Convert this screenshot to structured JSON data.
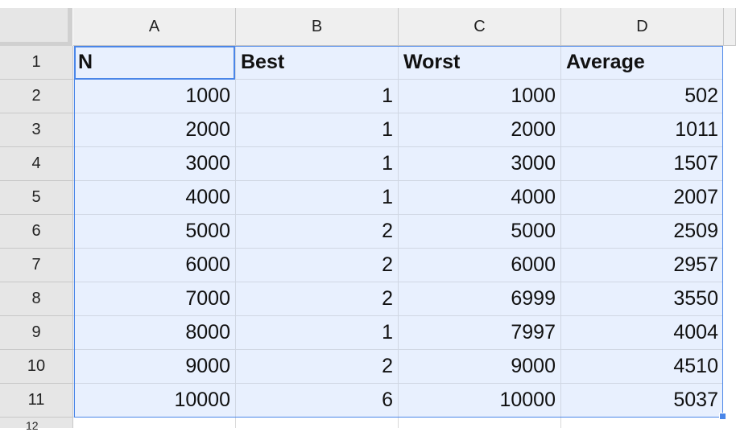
{
  "columns": [
    "A",
    "B",
    "C",
    "D"
  ],
  "header_row": {
    "row_label": "1",
    "cells": [
      "N",
      "Best",
      "Worst",
      "Average"
    ]
  },
  "rows": [
    {
      "label": "2",
      "cells": [
        "1000",
        "1",
        "1000",
        "502"
      ]
    },
    {
      "label": "3",
      "cells": [
        "2000",
        "1",
        "2000",
        "1011"
      ]
    },
    {
      "label": "4",
      "cells": [
        "3000",
        "1",
        "3000",
        "1507"
      ]
    },
    {
      "label": "5",
      "cells": [
        "4000",
        "1",
        "4000",
        "2007"
      ]
    },
    {
      "label": "6",
      "cells": [
        "5000",
        "2",
        "5000",
        "2509"
      ]
    },
    {
      "label": "7",
      "cells": [
        "6000",
        "2",
        "6000",
        "2957"
      ]
    },
    {
      "label": "8",
      "cells": [
        "7000",
        "2",
        "6999",
        "3550"
      ]
    },
    {
      "label": "9",
      "cells": [
        "8000",
        "1",
        "7997",
        "4004"
      ]
    },
    {
      "label": "10",
      "cells": [
        "9000",
        "2",
        "9000",
        "4510"
      ]
    },
    {
      "label": "11",
      "cells": [
        "10000",
        "6",
        "10000",
        "5037"
      ]
    }
  ],
  "partial_row_label": "12",
  "colors": {
    "selection_fill": "#e8f0fe",
    "selection_border": "#4a86e8",
    "header_fill": "#efefef"
  }
}
